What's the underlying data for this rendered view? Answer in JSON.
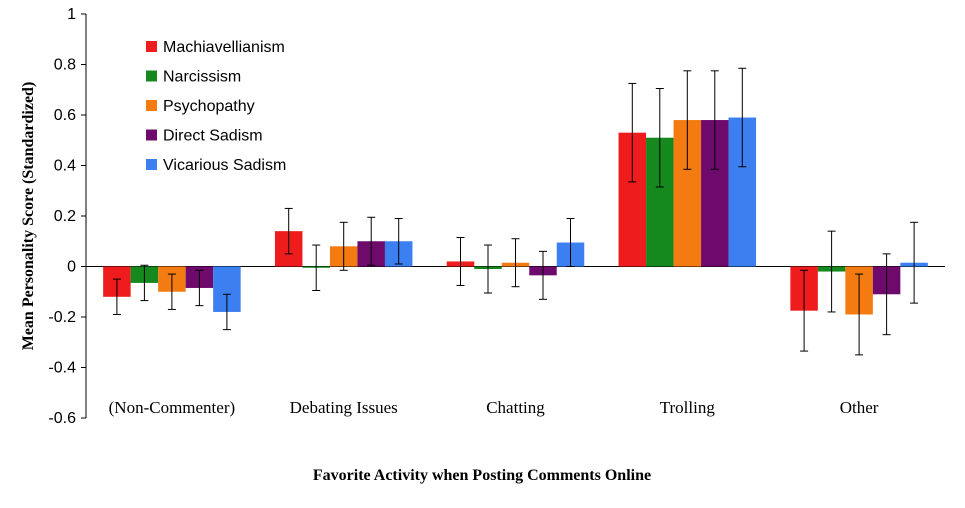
{
  "chart_data": {
    "type": "bar",
    "title": "",
    "xlabel": "Favorite Activity when Posting Comments Online",
    "ylabel": "Mean Personality Score (Standardized)",
    "ylim": [
      -0.6,
      1
    ],
    "yticks": [
      1,
      0.8,
      0.6,
      0.4,
      0.2,
      0,
      -0.2,
      -0.4,
      -0.6
    ],
    "ytick_labels": [
      "1",
      "0.8",
      "0.6",
      "0.4",
      "0.2",
      "0",
      "-0.2",
      "-0.4",
      "-0.6"
    ],
    "grid": false,
    "legend_position": "top-left",
    "categories": [
      "(Non-Commenter)",
      "Debating Issues",
      "Chatting",
      "Trolling",
      "Other"
    ],
    "series": [
      {
        "name": "Machiavellianism",
        "color": "#ee1c1c",
        "values": [
          -0.12,
          0.14,
          0.02,
          0.53,
          -0.175
        ],
        "error": [
          0.07,
          0.09,
          0.095,
          0.195,
          0.16
        ]
      },
      {
        "name": "Narcissism",
        "color": "#16891e",
        "values": [
          -0.065,
          -0.005,
          -0.01,
          0.51,
          -0.02
        ],
        "error": [
          0.07,
          0.09,
          0.095,
          0.195,
          0.16
        ]
      },
      {
        "name": "Psychopathy",
        "color": "#f47b12",
        "values": [
          -0.1,
          0.08,
          0.015,
          0.58,
          -0.19
        ],
        "error": [
          0.07,
          0.095,
          0.095,
          0.195,
          0.16
        ]
      },
      {
        "name": "Direct Sadism",
        "color": "#6e0a6b",
        "values": [
          -0.085,
          0.1,
          -0.035,
          0.58,
          -0.11
        ],
        "error": [
          0.07,
          0.095,
          0.095,
          0.195,
          0.16
        ]
      },
      {
        "name": "Vicarious Sadism",
        "color": "#3c7ff0",
        "values": [
          -0.18,
          0.1,
          0.095,
          0.59,
          0.015
        ],
        "error": [
          0.07,
          0.09,
          0.095,
          0.195,
          0.16
        ]
      }
    ]
  }
}
